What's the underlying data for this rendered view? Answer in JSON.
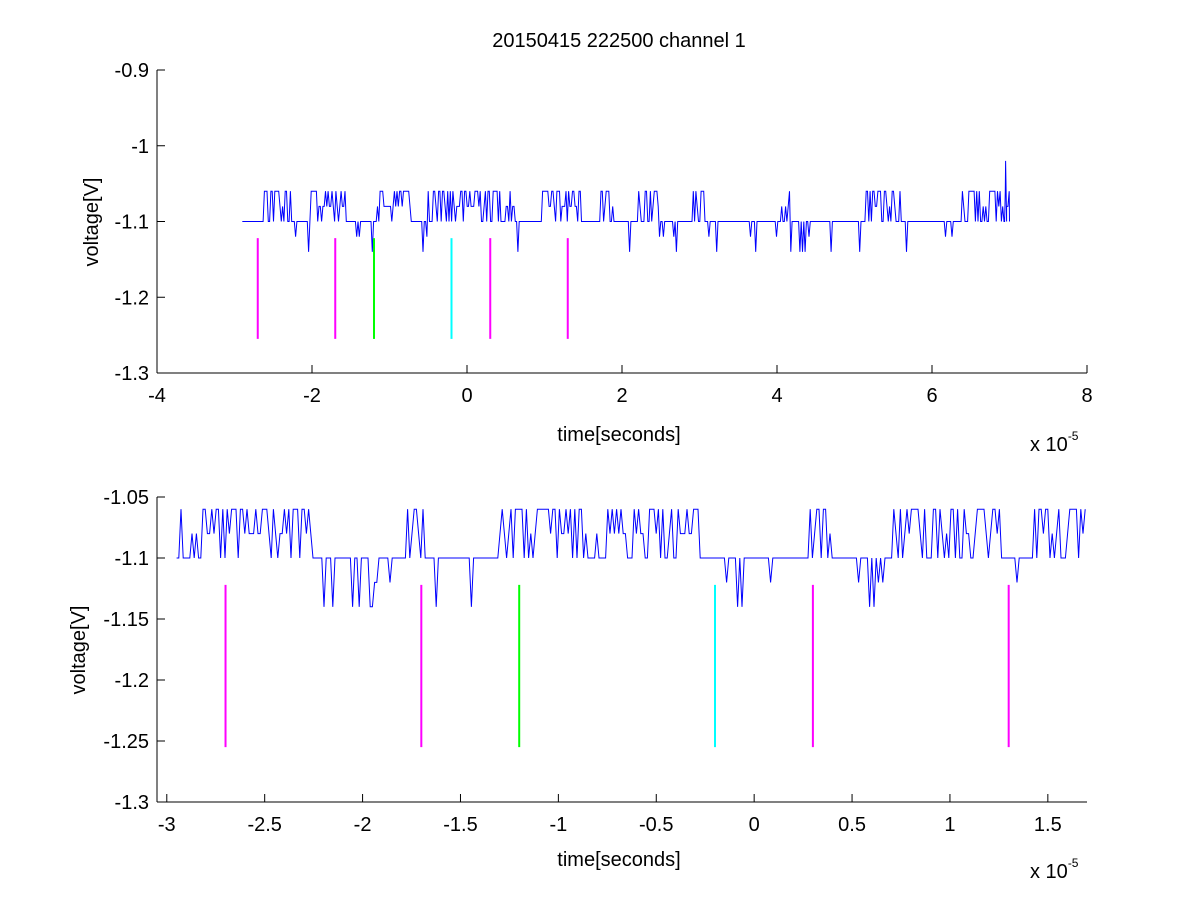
{
  "figure": {
    "title": "20150415 222500 channel 1"
  },
  "chart_data": [
    {
      "type": "line",
      "title": "20150415 222500 channel 1",
      "xlabel": "time[seconds]",
      "ylabel": "voltage[V]",
      "x_scale_label": "x 10",
      "x_scale_exponent": "-5",
      "x_scale_factor": 1e-05,
      "xlim": [
        -4,
        8
      ],
      "ylim": [
        -1.3,
        -0.9
      ],
      "xticks": [
        -4,
        -2,
        0,
        2,
        4,
        6,
        8
      ],
      "xtick_labels": [
        "-4",
        "-2",
        "0",
        "2",
        "4",
        "6",
        "8"
      ],
      "yticks": [
        -1.3,
        -1.2,
        -1.1,
        -1,
        -0.9
      ],
      "ytick_labels": [
        "-1.3",
        "-1.2",
        "-1.1",
        "-1",
        "-0.9"
      ],
      "grid": false,
      "signal": {
        "color": "#0000ff",
        "x_start": -2.9,
        "x_end": 7.0,
        "levels": [
          -1.06,
          -1.08,
          -1.1,
          -1.12,
          -1.14
        ],
        "spike_x": 6.95,
        "spike_y": -1.02
      },
      "markers": [
        {
          "x": -2.7,
          "y_top": -1.122,
          "y_bottom": -1.255,
          "color": "#ff00ff"
        },
        {
          "x": -1.7,
          "y_top": -1.122,
          "y_bottom": -1.255,
          "color": "#ff00ff"
        },
        {
          "x": -1.2,
          "y_top": -1.122,
          "y_bottom": -1.255,
          "color": "#00ff00"
        },
        {
          "x": -0.2,
          "y_top": -1.122,
          "y_bottom": -1.255,
          "color": "#00ffff"
        },
        {
          "x": 0.3,
          "y_top": -1.122,
          "y_bottom": -1.255,
          "color": "#ff00ff"
        },
        {
          "x": 1.3,
          "y_top": -1.122,
          "y_bottom": -1.255,
          "color": "#ff00ff"
        }
      ]
    },
    {
      "type": "line",
      "xlabel": "time[seconds]",
      "ylabel": "voltage[V]",
      "x_scale_label": "x 10",
      "x_scale_exponent": "-5",
      "x_scale_factor": 1e-05,
      "xlim": [
        -3.05,
        1.7
      ],
      "ylim": [
        -1.3,
        -1.05
      ],
      "xticks": [
        -3,
        -2.5,
        -2,
        -1.5,
        -1,
        -0.5,
        0,
        0.5,
        1,
        1.5
      ],
      "xtick_labels": [
        "-3",
        "-2.5",
        "-2",
        "-1.5",
        "-1",
        "-0.5",
        "0",
        "0.5",
        "1",
        "1.5"
      ],
      "yticks": [
        -1.3,
        -1.25,
        -1.2,
        -1.15,
        -1.1,
        -1.05
      ],
      "ytick_labels": [
        "-1.3",
        "-1.25",
        "-1.2",
        "-1.15",
        "-1.1",
        "-1.05"
      ],
      "grid": false,
      "signal": {
        "color": "#0000ff",
        "x_start": -2.95,
        "x_end": 1.7,
        "levels": [
          -1.06,
          -1.08,
          -1.1,
          -1.12,
          -1.14
        ]
      },
      "markers": [
        {
          "x": -2.7,
          "y_top": -1.122,
          "y_bottom": -1.255,
          "color": "#ff00ff"
        },
        {
          "x": -1.7,
          "y_top": -1.122,
          "y_bottom": -1.255,
          "color": "#ff00ff"
        },
        {
          "x": -1.2,
          "y_top": -1.122,
          "y_bottom": -1.255,
          "color": "#00ff00"
        },
        {
          "x": -0.2,
          "y_top": -1.122,
          "y_bottom": -1.255,
          "color": "#00ffff"
        },
        {
          "x": 0.3,
          "y_top": -1.122,
          "y_bottom": -1.255,
          "color": "#ff00ff"
        },
        {
          "x": 1.3,
          "y_top": -1.122,
          "y_bottom": -1.255,
          "color": "#ff00ff"
        }
      ]
    }
  ]
}
